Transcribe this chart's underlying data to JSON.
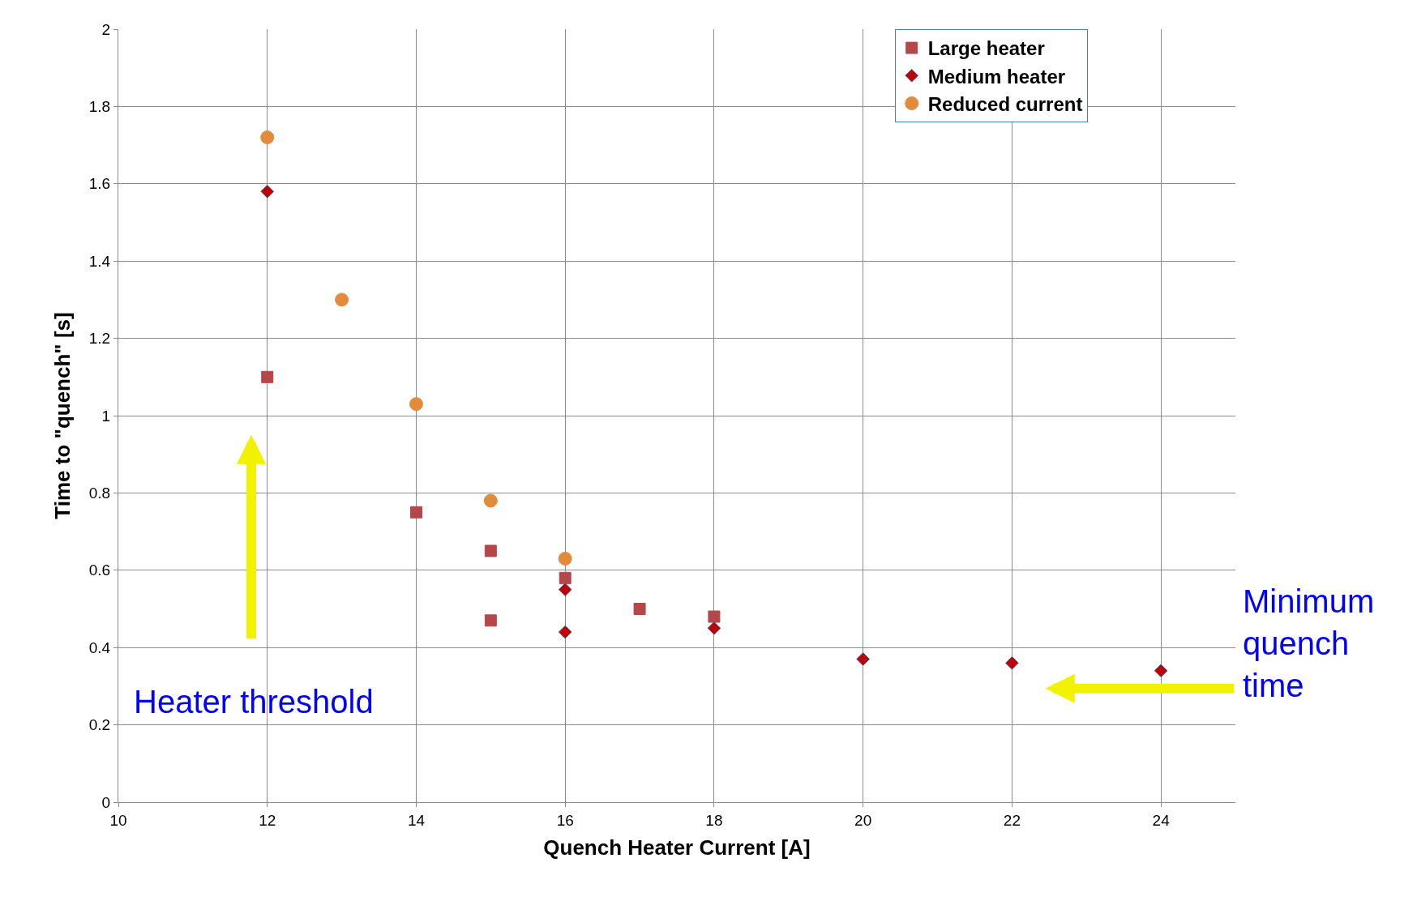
{
  "chart_data": {
    "type": "scatter",
    "xlabel": "Quench Heater Current [A]",
    "ylabel": "Time to \"quench\" [s]",
    "xlim": [
      10,
      25
    ],
    "xticks": [
      10,
      12,
      14,
      16,
      18,
      20,
      22,
      24
    ],
    "ylim": [
      0,
      2
    ],
    "yticks": [
      0,
      0.2,
      0.4,
      0.6,
      0.8,
      1,
      1.2,
      1.4,
      1.6,
      1.8,
      2
    ],
    "grid": true,
    "legend": "top right",
    "series": [
      {
        "name": "Large heater",
        "color": "#b5474a",
        "marker": "square",
        "x": [
          12,
          14,
          15,
          15,
          16,
          17,
          18
        ],
        "values": [
          1.1,
          0.75,
          0.65,
          0.47,
          0.58,
          0.5,
          0.48
        ]
      },
      {
        "name": "Medium heater",
        "color": "#c00000",
        "marker": "diamond",
        "x": [
          12,
          16,
          16,
          18,
          20,
          22,
          24
        ],
        "values": [
          1.58,
          0.55,
          0.44,
          0.45,
          0.37,
          0.36,
          0.34
        ]
      },
      {
        "name": "Reduced current",
        "color": "#e38b3c",
        "marker": "circle",
        "x": [
          12,
          13,
          14,
          15,
          16
        ],
        "values": [
          1.72,
          1.3,
          1.03,
          0.78,
          0.63
        ]
      }
    ],
    "annotations": [
      "Heater threshold",
      "Minimum quench time"
    ]
  }
}
